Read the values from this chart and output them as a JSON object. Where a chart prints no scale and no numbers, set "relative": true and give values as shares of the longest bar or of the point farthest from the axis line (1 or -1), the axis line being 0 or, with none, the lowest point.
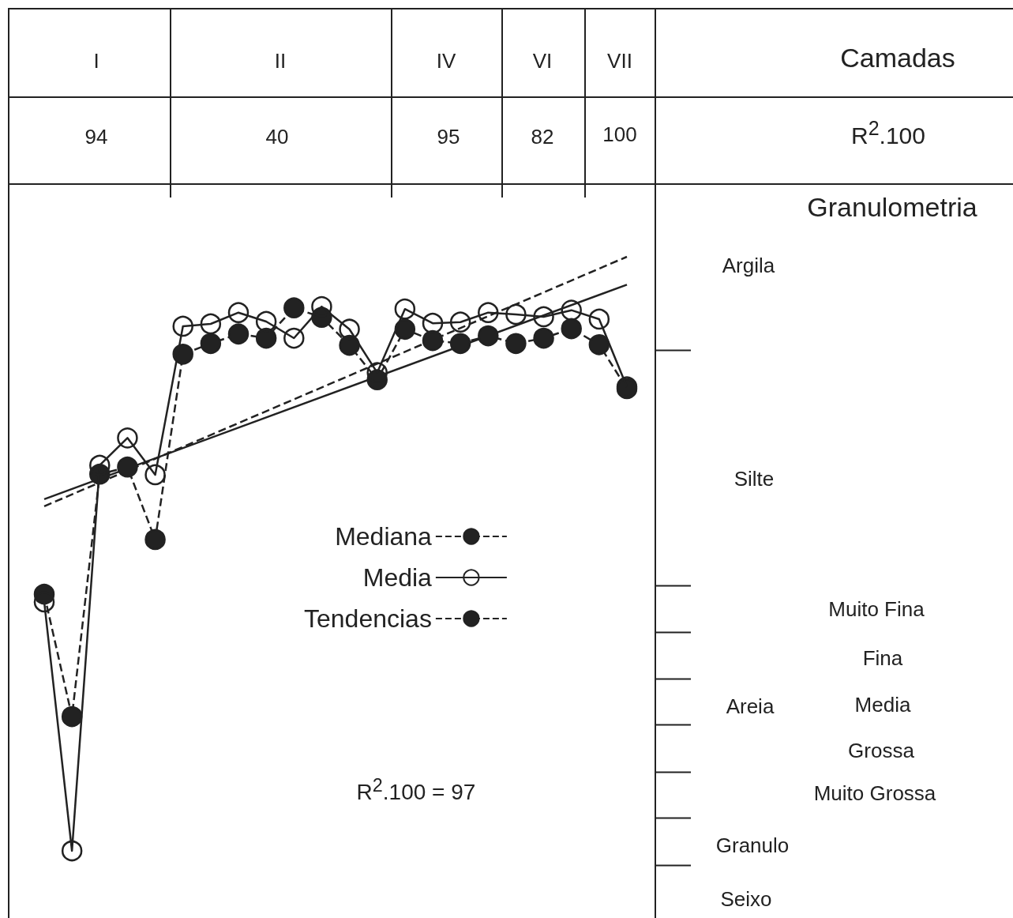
{
  "chart_data": {
    "type": "line",
    "relative": true,
    "categories": [
      null,
      null,
      null,
      null,
      null,
      null,
      null,
      null,
      null,
      null,
      null,
      null,
      null,
      null,
      null,
      null,
      null,
      null,
      null,
      null,
      null,
      null
    ],
    "series": [
      {
        "name": "Mediana",
        "color": "#222222",
        "marker": "circle",
        "line_style": "dashed",
        "values": [
          0.432,
          0.226,
          0.634,
          0.646,
          0.524,
          0.836,
          0.854,
          0.87,
          0.863,
          0.914,
          0.898,
          0.851,
          0.793,
          0.878,
          0.859,
          0.854,
          0.867,
          0.854,
          0.863,
          0.879,
          0.852,
          0.778
        ]
      },
      {
        "name": "Media",
        "color": "#222222",
        "marker": "circle",
        "line_style": "solid",
        "values": [
          0.419,
          0,
          0.649,
          0.695,
          0.633,
          0.883,
          0.887,
          0.906,
          0.891,
          0.863,
          0.916,
          0.878,
          0.805,
          0.912,
          0.888,
          0.89,
          0.906,
          0.903,
          0.899,
          0.91,
          0.895,
          0.781
        ]
      },
      {
        "name": "Tendencias",
        "color": "#222222",
        "marker": "none",
        "line_style": "dashed",
        "values": [
          0.58,
          null,
          null,
          null,
          null,
          null,
          null,
          null,
          null,
          null,
          null,
          null,
          null,
          null,
          null,
          null,
          null,
          null,
          null,
          null,
          null,
          1.0
        ]
      },
      {
        "color": "#222222",
        "marker": "none",
        "line_style": "solid",
        "values": [
          0.592,
          null,
          null,
          null,
          null,
          null,
          null,
          null,
          null,
          null,
          null,
          null,
          null,
          null,
          null,
          null,
          null,
          null,
          null,
          null,
          null,
          0.953
        ]
      }
    ],
    "legend": "center",
    "annotations": [
      "I",
      "II",
      "IV",
      "VI",
      "VII",
      "Camadas",
      "94",
      "40",
      "95",
      "82",
      "100",
      "R$^{2}$.100",
      "Granulometria",
      "Argila",
      "Silte",
      "Areia",
      "Muito Fina",
      "Fina",
      "Media",
      "Grossa",
      "Muito Grossa",
      "Granulo",
      "Seixo",
      "R$^{2}$.100 = 97"
    ]
  }
}
